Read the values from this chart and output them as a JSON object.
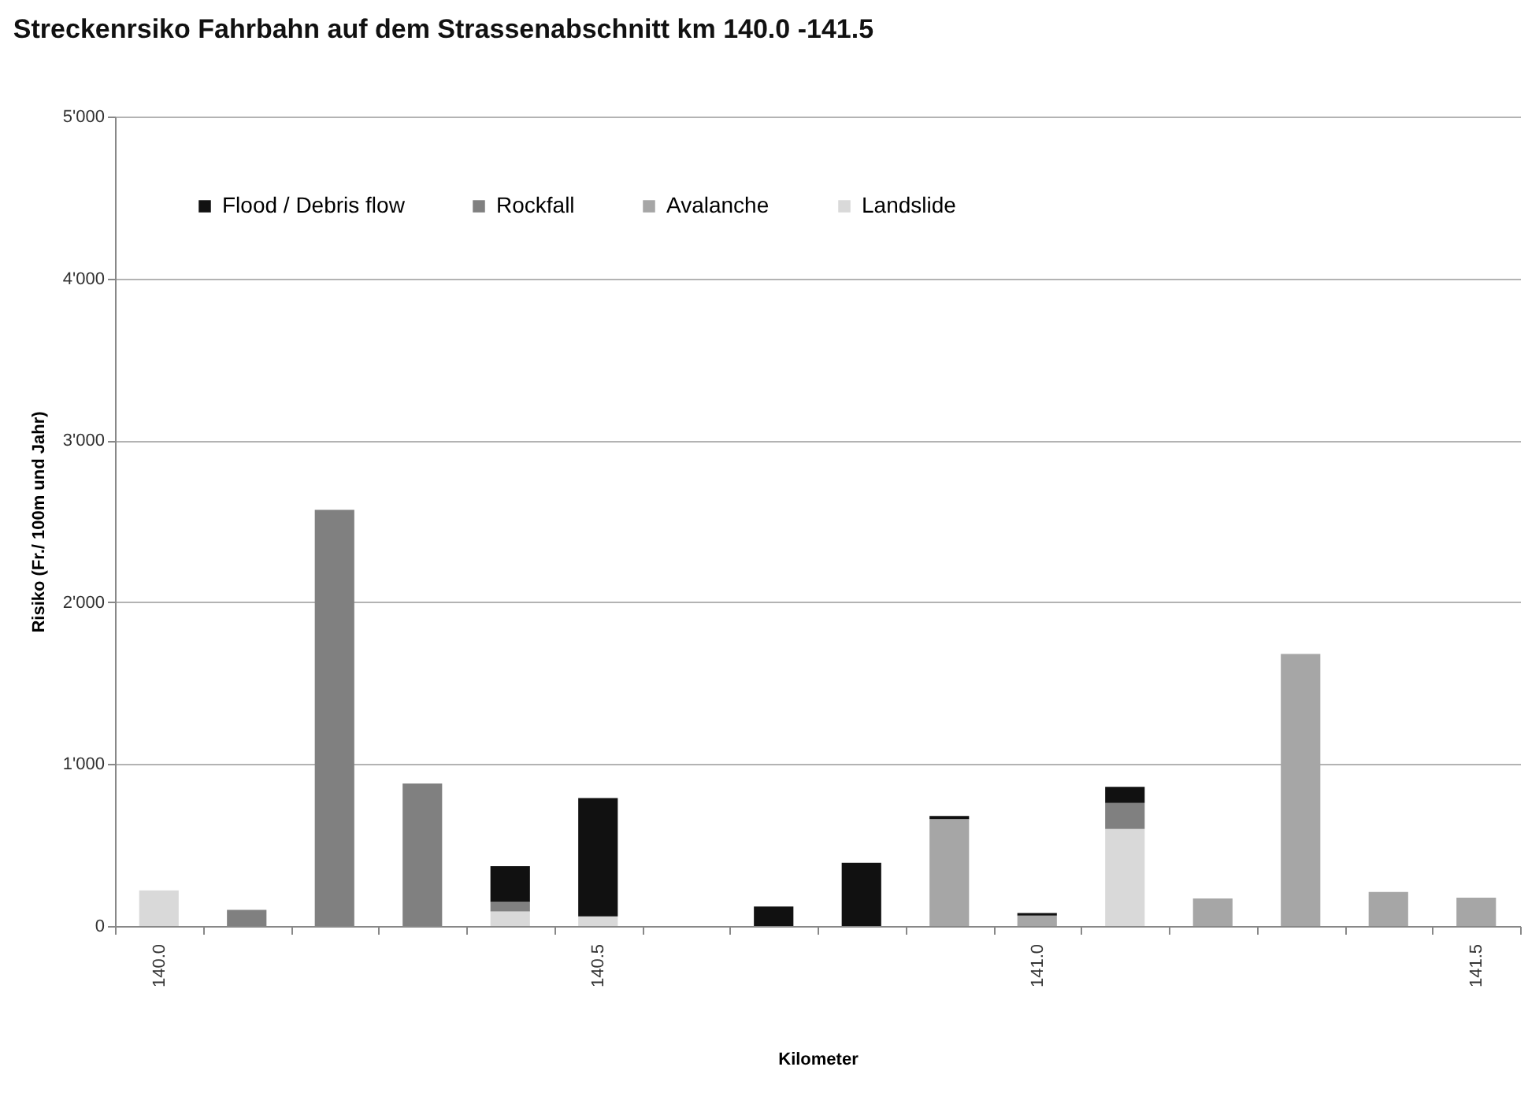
{
  "chart_data": {
    "type": "bar",
    "title": "Streckenrsiko Fahrbahn auf dem Strassenabschnitt km 140.0 -141.5",
    "xlabel": "Kilometer",
    "ylabel": "Risiko (Fr./ 100m und Jahr)",
    "categories": [
      "140.0",
      null,
      null,
      null,
      null,
      "140.5",
      null,
      null,
      null,
      null,
      "141.0",
      null,
      null,
      null,
      null,
      "141.5"
    ],
    "stacked": true,
    "series": [
      {
        "name": "Landslide",
        "color": "#d9d9d9",
        "values": [
          220,
          null,
          null,
          null,
          90,
          60,
          null,
          null,
          null,
          null,
          null,
          600,
          null,
          null,
          null,
          null
        ]
      },
      {
        "name": "Avalanche",
        "color": "#a6a6a6",
        "values": [
          null,
          null,
          null,
          null,
          null,
          null,
          null,
          null,
          null,
          660,
          65,
          null,
          170,
          1680,
          210,
          175
        ]
      },
      {
        "name": "Rockfall",
        "color": "#808080",
        "values": [
          null,
          100,
          2570,
          880,
          60,
          null,
          null,
          null,
          null,
          null,
          null,
          160,
          null,
          null,
          null,
          null
        ]
      },
      {
        "name": "Flood / Debris flow",
        "color": "#111111",
        "values": [
          null,
          null,
          null,
          null,
          220,
          730,
          null,
          120,
          390,
          20,
          15,
          100,
          null,
          null,
          null,
          null
        ]
      }
    ],
    "ylim": [
      0,
      5000
    ],
    "yticks": [
      0,
      {
        "value": 1000,
        "label": "1'000"
      },
      {
        "value": 2000,
        "label": "2'000"
      },
      {
        "value": 3000,
        "label": "3'000"
      },
      {
        "value": 4000,
        "label": "4'000"
      },
      {
        "value": 5000,
        "label": "5'000"
      }
    ],
    "grid": "y",
    "legend": "top left"
  }
}
